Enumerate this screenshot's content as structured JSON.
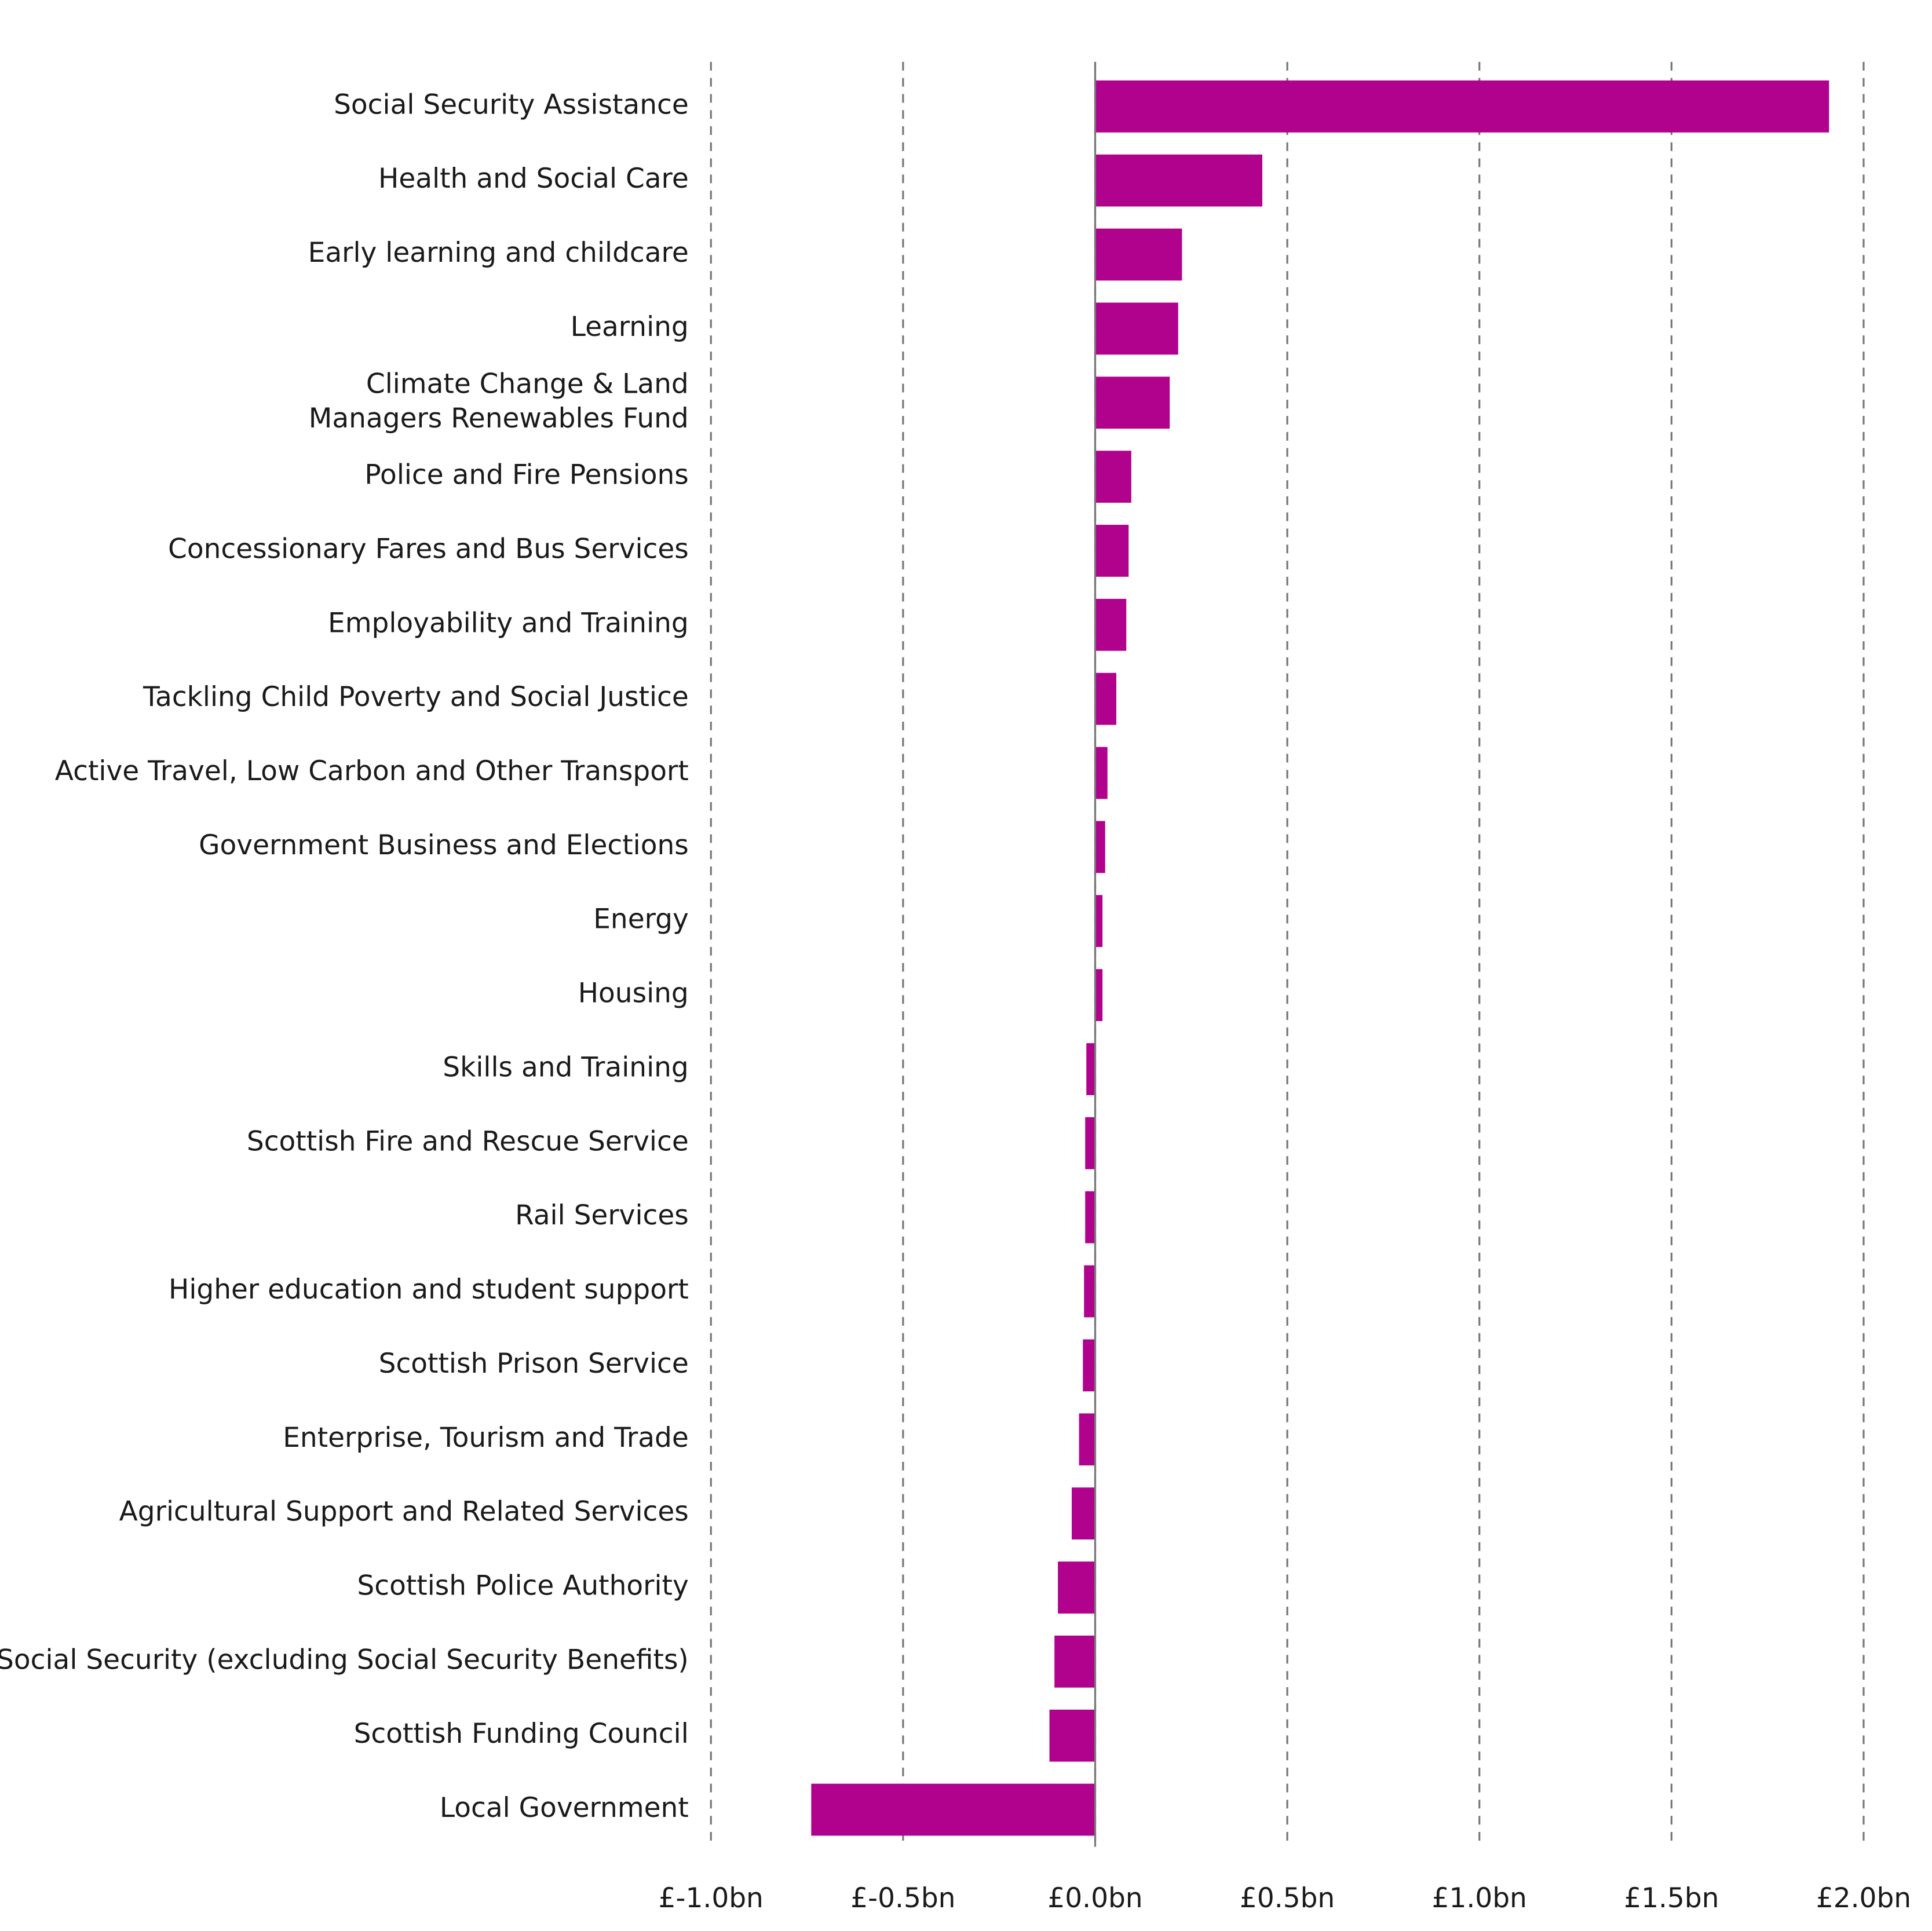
{
  "chart_data": {
    "type": "hbar",
    "categories": [
      "Social Security Assistance",
      "Health and Social Care",
      "Early learning and childcare",
      "Learning",
      "Climate Change & Land\nManagers Renewables Fund",
      "Police and Fire Pensions",
      "Concessionary Fares and Bus Services",
      "Employability and Training",
      "Tackling Child Poverty and Social Justice",
      "Active Travel, Low Carbon and Other Transport",
      "Government Business and Elections",
      "Energy",
      "Housing",
      "Skills and Training",
      "Scottish Fire and Rescue Service",
      "Rail Services",
      "Higher education and student support",
      "Scottish Prison Service",
      "Enterprise, Tourism and Trade",
      "Agricultural Support and Related Services",
      "Scottish Police Authority",
      "Social Security (excluding Social Security Benefits)",
      "Scottish Funding Council",
      "Local Government"
    ],
    "values": [
      1.91,
      0.435,
      0.226,
      0.216,
      0.194,
      0.094,
      0.087,
      0.081,
      0.055,
      0.032,
      0.026,
      0.019,
      0.019,
      -0.023,
      -0.026,
      -0.026,
      -0.029,
      -0.032,
      -0.042,
      -0.061,
      -0.097,
      -0.106,
      -0.119,
      -0.739
    ],
    "color": "#b0028c",
    "xlim": [
      -1.0,
      2.0
    ],
    "xticks": [
      {
        "value": -1.0,
        "label": "£-1.0bn"
      },
      {
        "value": -0.5,
        "label": "£-0.5bn"
      },
      {
        "value": 0,
        "label": "£0.0bn"
      },
      {
        "value": 0.5,
        "label": "£0.5bn"
      },
      {
        "value": 1.0,
        "label": "£1.0bn"
      },
      {
        "value": 1.5,
        "label": "£1.5bn"
      },
      {
        "value": 2.0,
        "label": "£2.0bn"
      }
    ],
    "grid": true
  }
}
